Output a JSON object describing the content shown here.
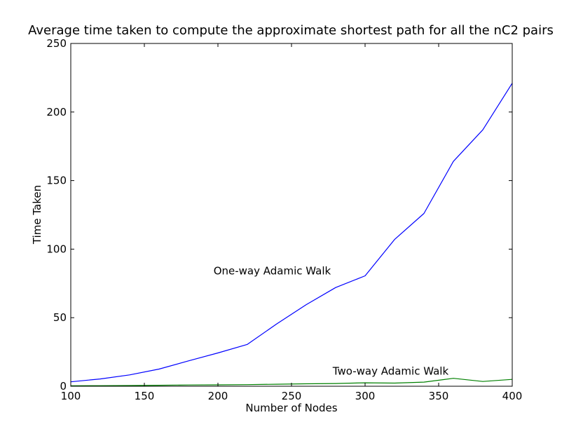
{
  "chart_data": {
    "type": "line",
    "title": "Average time taken to compute the approximate shortest path for all the nC2 pairs",
    "xlabel": "Number of Nodes",
    "ylabel": "Time Taken",
    "xlim": [
      100,
      400
    ],
    "ylim": [
      0,
      250
    ],
    "xticks": [
      100,
      150,
      200,
      250,
      300,
      350,
      400
    ],
    "yticks": [
      0,
      50,
      100,
      150,
      200,
      250
    ],
    "grid": false,
    "legend": "none",
    "x": [
      100,
      120,
      140,
      160,
      180,
      200,
      220,
      240,
      260,
      280,
      300,
      320,
      340,
      360,
      380,
      400
    ],
    "series": [
      {
        "color": "#0000ff",
        "values": [
          3.2,
          5.3,
          8.3,
          12.5,
          18.5,
          24.3,
          30.5,
          45.5,
          59.5,
          72.0,
          80.5,
          107.0,
          126.0,
          164.0,
          187.0,
          221.0
        ]
      },
      {
        "color": "#008000",
        "values": [
          0.3,
          0.4,
          0.5,
          0.7,
          0.9,
          1.0,
          1.2,
          1.5,
          1.8,
          2.0,
          2.5,
          2.3,
          3.0,
          5.8,
          3.5,
          5.0
        ]
      }
    ],
    "annotations": [
      {
        "text": "One-way Adamic Walk",
        "x": 197,
        "y": 81.5
      },
      {
        "text": "Two-way Adamic Walk",
        "x": 278,
        "y": 8.5
      }
    ]
  }
}
